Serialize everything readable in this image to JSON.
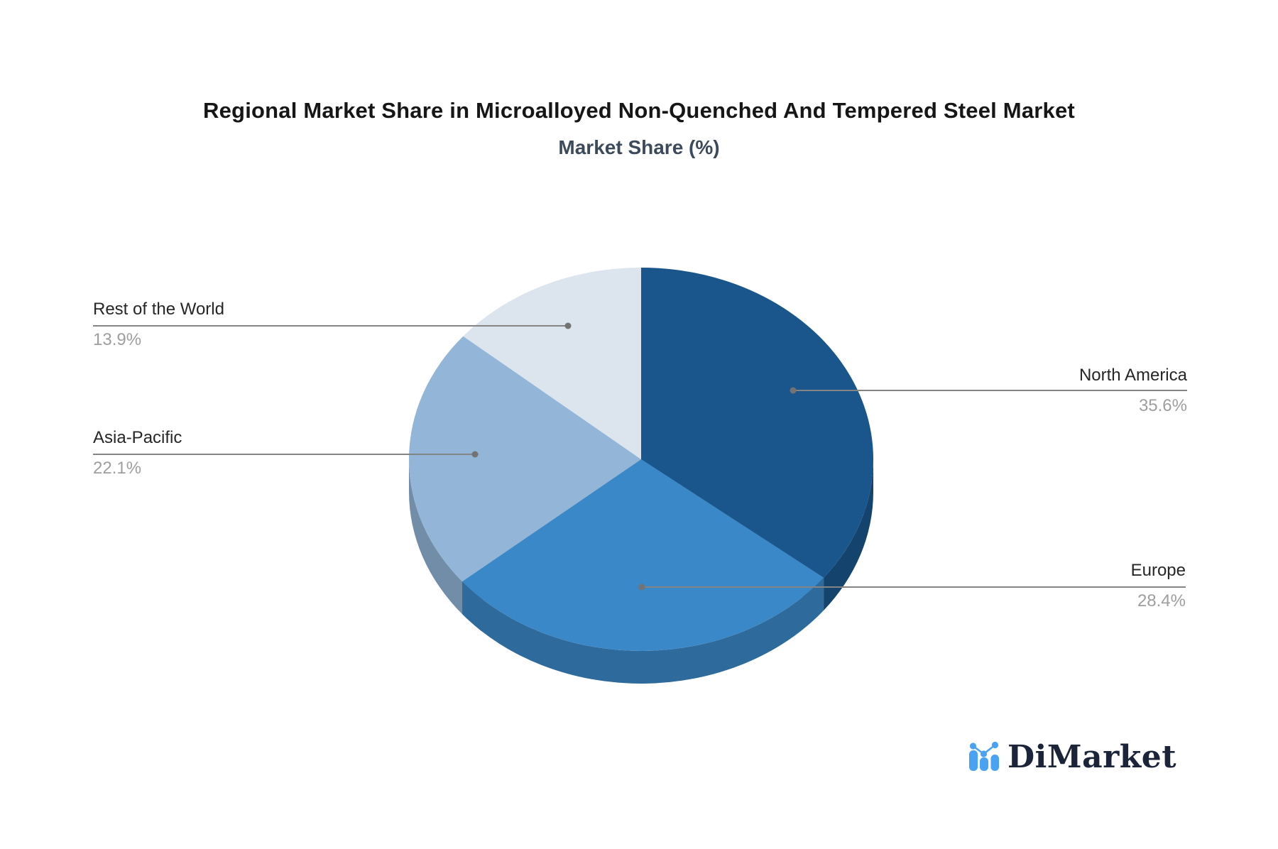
{
  "title": "Regional Market Share in Microalloyed Non-Quenched And Tempered Steel Market",
  "subtitle": "Market Share (%)",
  "logo": {
    "text": "DiMarket",
    "icon": "bar-line-chart-icon"
  },
  "colors": {
    "leader_line": "#848484",
    "leader_dot": "#737373",
    "label_text": "#262626",
    "percent_text": "#9e9e9e",
    "title_text": "#161616",
    "subtitle_text": "#3d4a5c",
    "logo_blue": "#4aa3f2",
    "logo_navy": "#1b2439"
  },
  "chart_data": {
    "type": "pie",
    "style": "3d",
    "title": "Regional Market Share in Microalloyed Non-Quenched And Tempered Steel Market",
    "subtitle": "Market Share (%)",
    "unit": "%",
    "direction": "clockwise",
    "start_angle_deg": 0,
    "legend": "none",
    "slices": [
      {
        "label": "North America",
        "value": 35.6,
        "display": "35.6%",
        "color": "#1A568C"
      },
      {
        "label": "Europe",
        "value": 28.4,
        "display": "28.4%",
        "color": "#3B88C8"
      },
      {
        "label": "Asia-Pacific",
        "value": 22.1,
        "display": "22.1%",
        "color": "#92B5D8"
      },
      {
        "label": "Rest of the World",
        "value": 13.9,
        "display": "13.9%",
        "color": "#DCE4EE"
      }
    ]
  }
}
